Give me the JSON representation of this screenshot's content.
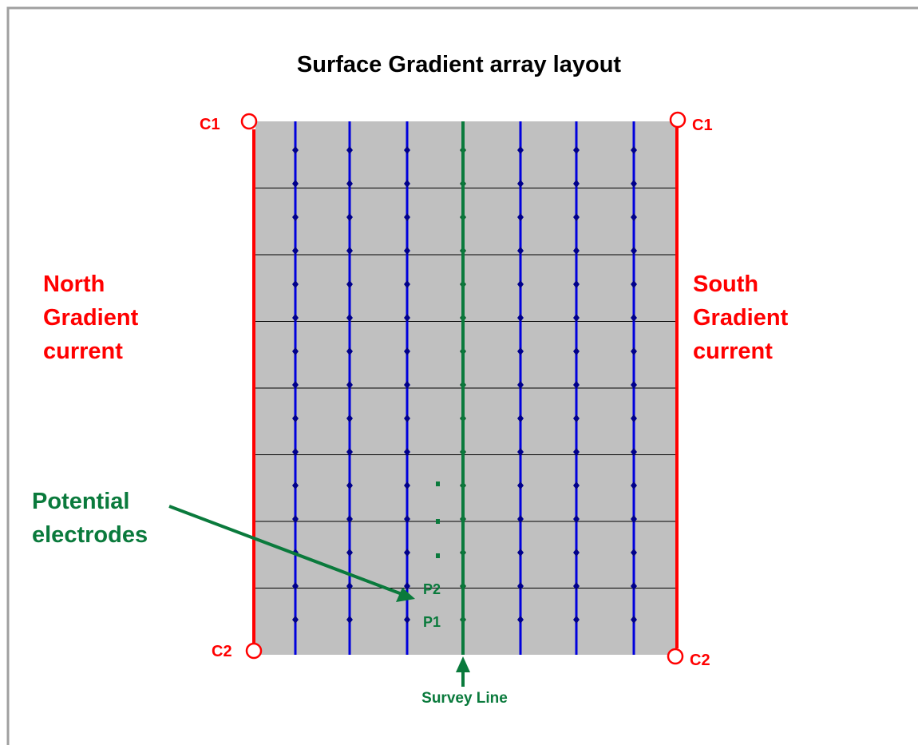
{
  "title": "Surface Gradient array layout",
  "electrodes": {
    "c1_left": "C1",
    "c1_right": "C1",
    "c2_left": "C2",
    "c2_right": "C2",
    "p1": "P1",
    "p2": "P2"
  },
  "north_label": [
    "North",
    "Gradient",
    "current"
  ],
  "south_label": [
    "South",
    "Gradient",
    "current"
  ],
  "potential_label": [
    "Potential",
    "electrodes"
  ],
  "survey_line_label": "Survey Line"
}
